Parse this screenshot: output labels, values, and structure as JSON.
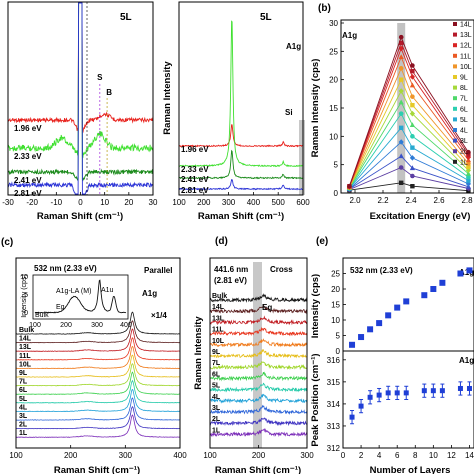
{
  "chart_data": [
    {
      "panel": "a-left",
      "type": "line",
      "title": "5L",
      "xlabel": "Raman Shift (cm⁻¹)",
      "ylabel": "",
      "xlim": [
        -30,
        30
      ],
      "xticks": [
        "-30",
        "-20",
        "-10",
        "0",
        "10",
        "20",
        "30"
      ],
      "series": [
        {
          "name": "1.96 eV",
          "color": "#e8211c"
        },
        {
          "name": "2.33 eV",
          "color": "#3fe02f"
        },
        {
          "name": "2.41 eV",
          "color": "#1a8a1a"
        },
        {
          "name": "2.81 eV",
          "color": "#2b33d6"
        }
      ],
      "markers": [
        {
          "label": "S",
          "x": 8,
          "color": "#9b26d9"
        },
        {
          "label": "B",
          "x": 11,
          "color": "#b59a10"
        }
      ]
    },
    {
      "panel": "a-right",
      "type": "line",
      "title": "5L",
      "xlabel": "Raman Shift (cm⁻¹)",
      "ylabel": "Raman Intensity",
      "xlim": [
        100,
        600
      ],
      "xticks": [
        "100",
        "200",
        "300",
        "400",
        "500",
        "600"
      ],
      "peak_label": "A1g",
      "peak_x": 313,
      "si_label": "Si",
      "si_x": 300,
      "series": [
        {
          "name": "1.96 eV",
          "color": "#e8211c"
        },
        {
          "name": "2.33 eV",
          "color": "#3fe02f"
        },
        {
          "name": "2.41 eV",
          "color": "#1a8a1a"
        },
        {
          "name": "2.81 eV",
          "color": "#2b33d6"
        }
      ]
    },
    {
      "panel": "b",
      "type": "line",
      "label": "(b)",
      "annotation": "A1g",
      "xlabel": "Excitation Energy (eV)",
      "ylabel": "Raman Intensity (cps)",
      "xlim": [
        1.9,
        2.85
      ],
      "ylim": [
        0,
        30
      ],
      "xticks": [
        2.0,
        2.2,
        2.4,
        2.6,
        2.8
      ],
      "yticks": [
        0,
        5,
        10,
        15,
        20,
        25,
        30
      ],
      "x": [
        1.96,
        2.33,
        2.41,
        2.81
      ],
      "highlight_x": 2.33,
      "legend": "right",
      "series": [
        {
          "name": "1L",
          "values": [
            0.5,
            1.8,
            1.2,
            0.4
          ],
          "color": "#222222"
        },
        {
          "name": "2L",
          "values": [
            0.6,
            4.5,
            3.0,
            0.8
          ],
          "color": "#5c3fa3"
        },
        {
          "name": "3L",
          "values": [
            0.7,
            6.5,
            4.4,
            1.1
          ],
          "color": "#3a52c8"
        },
        {
          "name": "4L",
          "values": [
            0.7,
            9.0,
            6.2,
            1.6
          ],
          "color": "#2e7bd6"
        },
        {
          "name": "5L",
          "values": [
            0.8,
            11.5,
            8.0,
            2.2
          ],
          "color": "#27a9d1"
        },
        {
          "name": "6L",
          "values": [
            0.8,
            14.0,
            10.0,
            2.8
          ],
          "color": "#2ccfb0"
        },
        {
          "name": "7L",
          "values": [
            0.9,
            16.0,
            12.0,
            3.4
          ],
          "color": "#4fd86a"
        },
        {
          "name": "8L",
          "values": [
            0.9,
            18.0,
            14.0,
            4.0
          ],
          "color": "#a6d93a"
        },
        {
          "name": "9L",
          "values": [
            1.0,
            20.0,
            15.5,
            4.6
          ],
          "color": "#e6c928"
        },
        {
          "name": "10L",
          "values": [
            1.0,
            22.0,
            17.0,
            5.2
          ],
          "color": "#f0952a"
        },
        {
          "name": "11L",
          "values": [
            1.1,
            24.0,
            19.0,
            5.8
          ],
          "color": "#eb5a24"
        },
        {
          "name": "12L",
          "values": [
            1.1,
            25.5,
            20.5,
            6.3
          ],
          "color": "#d92424"
        },
        {
          "name": "13L",
          "values": [
            1.2,
            26.5,
            21.5,
            6.8
          ],
          "color": "#b51a2a"
        },
        {
          "name": "14L",
          "values": [
            1.2,
            27.5,
            22.5,
            7.2
          ],
          "color": "#8a1020"
        }
      ]
    },
    {
      "panel": "c",
      "type": "line",
      "label": "(c)",
      "tag": "Parallel",
      "laser": "532 nm (2.33 eV)",
      "peak_label": "A1g",
      "scale_note": "×1/4",
      "xlabel": "Raman Shift (cm⁻¹)",
      "ylabel": "Raman Intensity",
      "xlim": [
        100,
        400
      ],
      "xticks": [
        "100",
        "200",
        "300",
        "400"
      ],
      "peak_x": 313,
      "inset": {
        "ylabel": "Intensity (cps)",
        "yticks": [
          "0",
          "5",
          "10"
        ],
        "xticks": [
          "100",
          "200",
          "300",
          "400"
        ],
        "labels": [
          "A1g-LA (M)",
          "Eg",
          "A1u"
        ],
        "tag": "Bulk"
      },
      "layers": [
        "Bulk",
        "14L",
        "13L",
        "11L",
        "10L",
        "9L",
        "7L",
        "6L",
        "5L",
        "4L",
        "3L",
        "2L",
        "1L"
      ],
      "colors": [
        "#111111",
        "#5a1d1d",
        "#c0191f",
        "#e8341c",
        "#f07a1a",
        "#e6bd18",
        "#9fd62a",
        "#39cf4a",
        "#20c9a8",
        "#1ea0d8",
        "#2b63d8",
        "#3b2fc0",
        "#7a2bb8"
      ]
    },
    {
      "panel": "d",
      "type": "line",
      "label": "(d)",
      "laser": "441.6 nm",
      "laser_energy": "(2.81 eV)",
      "tag": "Cross",
      "peak_label": "Eg",
      "xlabel": "Raman Shift (cm⁻¹)",
      "ylabel": "Raman Intensity",
      "xlim": [
        100,
        300
      ],
      "xticks": [
        "100",
        "200",
        "300"
      ],
      "peak_x": 210,
      "layers": [
        "Bulk",
        "14L",
        "13L",
        "11L",
        "10L",
        "9L",
        "7L",
        "6L",
        "5L",
        "4L",
        "3L",
        "2L",
        "1L"
      ],
      "colors": [
        "#111111",
        "#5a1d1d",
        "#c0191f",
        "#e8341c",
        "#f07a1a",
        "#e6bd18",
        "#9fd62a",
        "#39cf4a",
        "#20c9a8",
        "#1ea0d8",
        "#2b63d8",
        "#3b2fc0",
        "#7a2bb8"
      ]
    },
    {
      "panel": "e",
      "type": "scatter",
      "label": "(e)",
      "laser": "532 nm (2.33 eV)",
      "annotation_top": "A1g",
      "annotation_bottom": "A1g",
      "xlabel": "Number of Layers",
      "xlim": [
        0,
        14.5
      ],
      "xticks": [
        "0",
        "2",
        "4",
        "6",
        "8",
        "10",
        "12",
        "14"
      ],
      "top": {
        "ylabel": "Intensity (cps)",
        "ylim": [
          0,
          30
        ],
        "yticks": [
          "0",
          "5",
          "10",
          "15",
          "20",
          "25"
        ],
        "x": [
          1,
          2,
          3,
          4,
          5,
          6,
          7,
          9,
          10,
          11,
          13,
          14
        ],
        "y": [
          2,
          4.5,
          7,
          9,
          11.5,
          14,
          16,
          18,
          20,
          22,
          25,
          26
        ],
        "color": "#1f3fd6"
      },
      "bottom": {
        "ylabel": "Peak Position (cm⁻¹)",
        "ylim": [
          312,
          316.4
        ],
        "yticks": [
          "312",
          "313",
          "314",
          "315",
          "316"
        ],
        "x": [
          1,
          2,
          3,
          4,
          5,
          6,
          7,
          9,
          10,
          11,
          13,
          14
        ],
        "y": [
          313.4,
          313.9,
          314.3,
          314.4,
          314.5,
          314.5,
          314.5,
          314.6,
          314.6,
          314.6,
          314.7,
          314.7
        ],
        "err": [
          0.3,
          0.3,
          0.3,
          0.3,
          0.3,
          0.3,
          0.3,
          0.3,
          0.3,
          0.3,
          0.3,
          0.3
        ],
        "color": "#1f3fd6"
      }
    }
  ]
}
